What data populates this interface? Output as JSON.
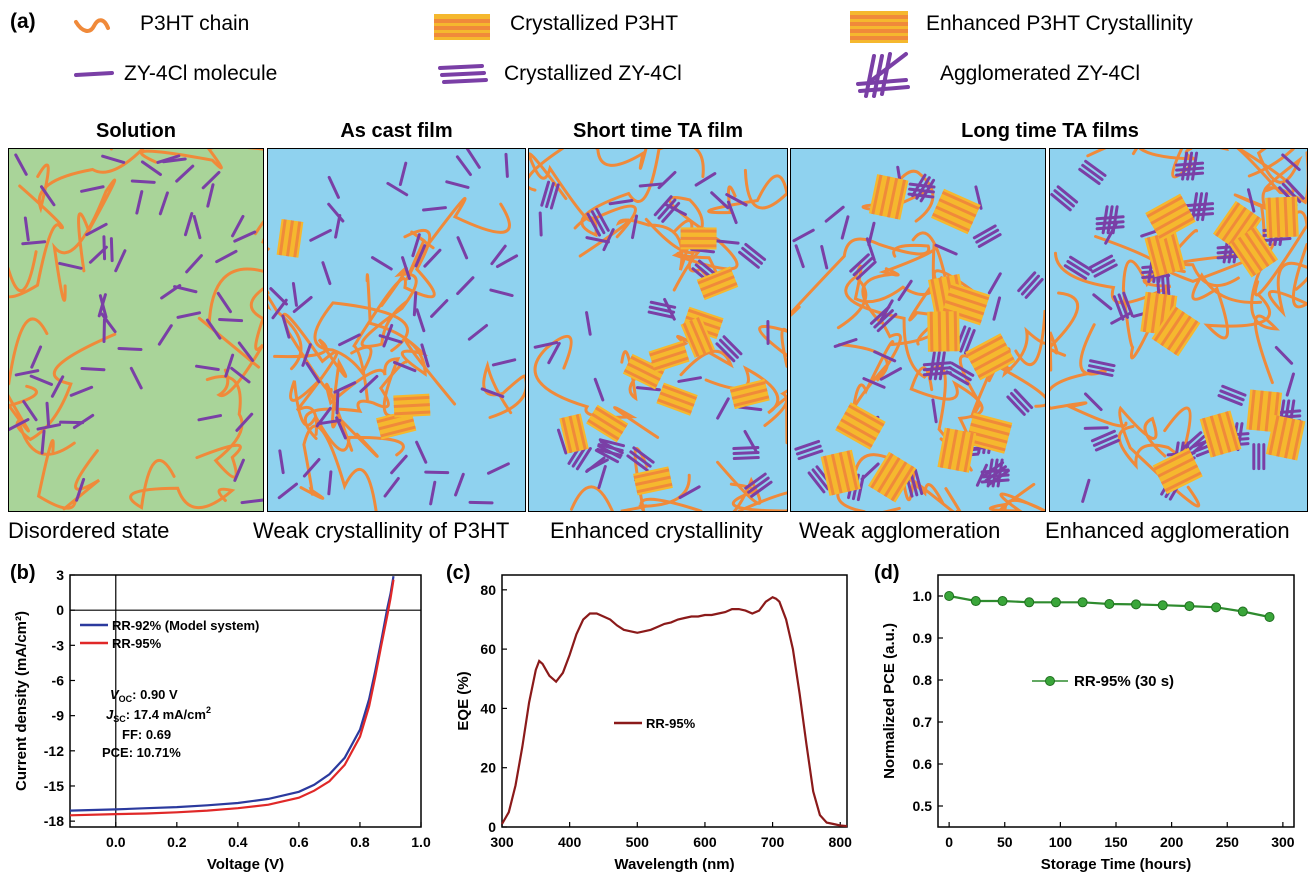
{
  "figure_label_a": "(a)",
  "legend": {
    "p3ht_chain": "P3HT chain",
    "crystallized_p3ht": "Crystallized P3HT",
    "enhanced_p3ht": "Enhanced P3HT Crystallinity",
    "zy_molecule": "ZY-4Cl molecule",
    "crystallized_zy": "Crystallized ZY-4Cl",
    "agglomerated_zy": "Agglomerated ZY-4Cl"
  },
  "colors": {
    "p3ht": "#f08a3a",
    "crystal_bar": "#f5b82e",
    "zy": "#7a3fa6",
    "solution_bg": "#a9d499",
    "film_bg": "#8fd2ef"
  },
  "panels": [
    {
      "title": "Solution",
      "caption": "Disordered state"
    },
    {
      "title": "As cast film",
      "caption": "Weak crystallinity  of P3HT"
    },
    {
      "title": "Short time  TA film",
      "caption": "Enhanced crystallinity"
    },
    {
      "title": "Long time TA films",
      "caption": "Weak agglomeration"
    },
    {
      "title": "",
      "caption": "Enhanced agglomeration"
    }
  ],
  "chart_data": [
    {
      "label": "(b)",
      "type": "line",
      "xlabel": "Voltage (V)",
      "ylabel": "Current density (mA/cm²)",
      "xlim": [
        -0.15,
        1.0
      ],
      "ylim": [
        -18.5,
        3
      ],
      "xticks": [
        "0.0",
        "0.2",
        "0.4",
        "0.6",
        "0.8",
        "1.0"
      ],
      "yticks": [
        "3",
        "0",
        "-3",
        "-6",
        "-9",
        "-12",
        "-15",
        "-18"
      ],
      "legend": [
        "RR-92% (Model system)",
        "RR-95%"
      ],
      "annotations": {
        "voc": "V",
        "voc_sub": "OC",
        "voc_val": ": 0.90 V",
        "jsc": "J",
        "jsc_sub": "SC",
        "jsc_val": ": 17.4 mA/cm",
        "jsc_sup": "2",
        "ff": "FF: 0.69",
        "pce": "PCE: 10.71%"
      },
      "series": [
        {
          "name": "RR-92% (Model system)",
          "color": "#2b3a9e",
          "x": [
            -0.15,
            0.0,
            0.1,
            0.2,
            0.3,
            0.4,
            0.5,
            0.6,
            0.65,
            0.7,
            0.75,
            0.8,
            0.83,
            0.85,
            0.87,
            0.89,
            0.9,
            0.91
          ],
          "y": [
            -17.1,
            -17.0,
            -16.9,
            -16.8,
            -16.65,
            -16.45,
            -16.1,
            -15.5,
            -14.9,
            -14.0,
            -12.6,
            -10.2,
            -7.6,
            -5.2,
            -2.6,
            0.2,
            1.4,
            2.9
          ]
        },
        {
          "name": "RR-95%",
          "color": "#e02828",
          "x": [
            -0.15,
            0.0,
            0.1,
            0.2,
            0.3,
            0.4,
            0.5,
            0.6,
            0.65,
            0.7,
            0.75,
            0.8,
            0.83,
            0.85,
            0.87,
            0.89,
            0.9,
            0.91
          ],
          "y": [
            -17.5,
            -17.4,
            -17.35,
            -17.25,
            -17.1,
            -16.9,
            -16.6,
            -16.0,
            -15.4,
            -14.6,
            -13.2,
            -10.8,
            -8.2,
            -5.7,
            -3.0,
            -0.4,
            1.0,
            2.6
          ]
        }
      ]
    },
    {
      "label": "(c)",
      "type": "line",
      "xlabel": "Wavelength (nm)",
      "ylabel": "EQE (%)",
      "xlim": [
        300,
        810
      ],
      "ylim": [
        0,
        85
      ],
      "xticks": [
        "300",
        "400",
        "500",
        "600",
        "700",
        "800"
      ],
      "yticks": [
        "0",
        "20",
        "40",
        "60",
        "80"
      ],
      "legend": [
        "RR-95%"
      ],
      "series": [
        {
          "name": "RR-95%",
          "color": "#8b1a1a",
          "x": [
            300,
            310,
            320,
            330,
            340,
            350,
            355,
            360,
            365,
            370,
            380,
            390,
            400,
            410,
            420,
            430,
            440,
            450,
            460,
            470,
            480,
            490,
            500,
            510,
            520,
            530,
            540,
            550,
            560,
            570,
            580,
            590,
            600,
            610,
            620,
            630,
            640,
            650,
            660,
            670,
            680,
            690,
            700,
            705,
            710,
            720,
            730,
            740,
            750,
            760,
            770,
            780,
            790,
            800,
            810
          ],
          "y": [
            1,
            5,
            14,
            27,
            42,
            53,
            56,
            55,
            53,
            51,
            49,
            52,
            58,
            65,
            70,
            72,
            72,
            71,
            70,
            68,
            66.5,
            66,
            65.5,
            66,
            66.5,
            67.5,
            68.5,
            69,
            70,
            70.5,
            71,
            71,
            71.5,
            71.5,
            72,
            72.5,
            73.5,
            73.5,
            73,
            72,
            73,
            76,
            77.5,
            77,
            76,
            70,
            60,
            45,
            28,
            12,
            4,
            1.5,
            1,
            0.5,
            0.3
          ]
        }
      ]
    },
    {
      "label": "(d)",
      "type": "line",
      "xlabel": "Storage Time (hours)",
      "ylabel": "Normalized PCE (a.u.)",
      "xlim": [
        -10,
        310
      ],
      "ylim": [
        0.45,
        1.05
      ],
      "xticks": [
        "0",
        "50",
        "100",
        "150",
        "200",
        "250",
        "300"
      ],
      "yticks": [
        "0.5",
        "0.6",
        "0.7",
        "0.8",
        "0.9",
        "1.0"
      ],
      "legend": [
        "RR-95% (30 s)"
      ],
      "series": [
        {
          "name": "RR-95% (30 s)",
          "color": "#2e8b2e",
          "x": [
            0,
            24,
            48,
            72,
            96,
            120,
            144,
            168,
            192,
            216,
            240,
            264,
            288
          ],
          "y": [
            1.0,
            0.988,
            0.988,
            0.985,
            0.985,
            0.985,
            0.981,
            0.98,
            0.978,
            0.976,
            0.973,
            0.963,
            0.95
          ]
        }
      ]
    }
  ]
}
